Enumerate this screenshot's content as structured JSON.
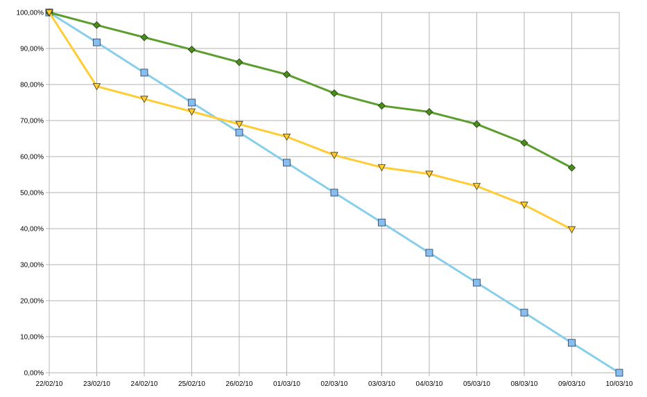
{
  "chart_data": {
    "type": "line",
    "title": "",
    "xlabel": "",
    "ylabel": "",
    "categories": [
      "22/02/10",
      "23/02/10",
      "24/02/10",
      "25/02/10",
      "26/02/10",
      "01/03/10",
      "02/03/10",
      "03/03/10",
      "04/03/10",
      "05/03/10",
      "08/03/10",
      "09/03/10",
      "10/03/10"
    ],
    "ylim": [
      0,
      100
    ],
    "y_ticks": [
      "0,00%",
      "10,00%",
      "20,00%",
      "30,00%",
      "40,00%",
      "50,00%",
      "60,00%",
      "70,00%",
      "80,00%",
      "90,00%",
      "100,00%"
    ],
    "grid": true,
    "legend": "none",
    "series": [
      {
        "marker": "square",
        "color": "#87CEEB",
        "marker_fill": "#87BDEF",
        "values": [
          100,
          91.7,
          83.3,
          75.0,
          66.7,
          58.3,
          50.0,
          41.7,
          33.3,
          25.0,
          16.7,
          8.3,
          0
        ]
      },
      {
        "marker": "diamond",
        "color": "#5C9E2E",
        "marker_fill": "#4C8C1E",
        "values": [
          100,
          96.5,
          93.1,
          89.7,
          86.2,
          82.8,
          77.6,
          74.1,
          72.4,
          69.0,
          63.8,
          56.9,
          null
        ]
      },
      {
        "marker": "triangle-down",
        "color": "#FFCC33",
        "marker_fill": "#FFCC33",
        "values": [
          100,
          79.5,
          76.0,
          72.5,
          69.0,
          65.5,
          60.4,
          57.0,
          55.2,
          51.8,
          46.6,
          39.8,
          null
        ]
      }
    ]
  }
}
